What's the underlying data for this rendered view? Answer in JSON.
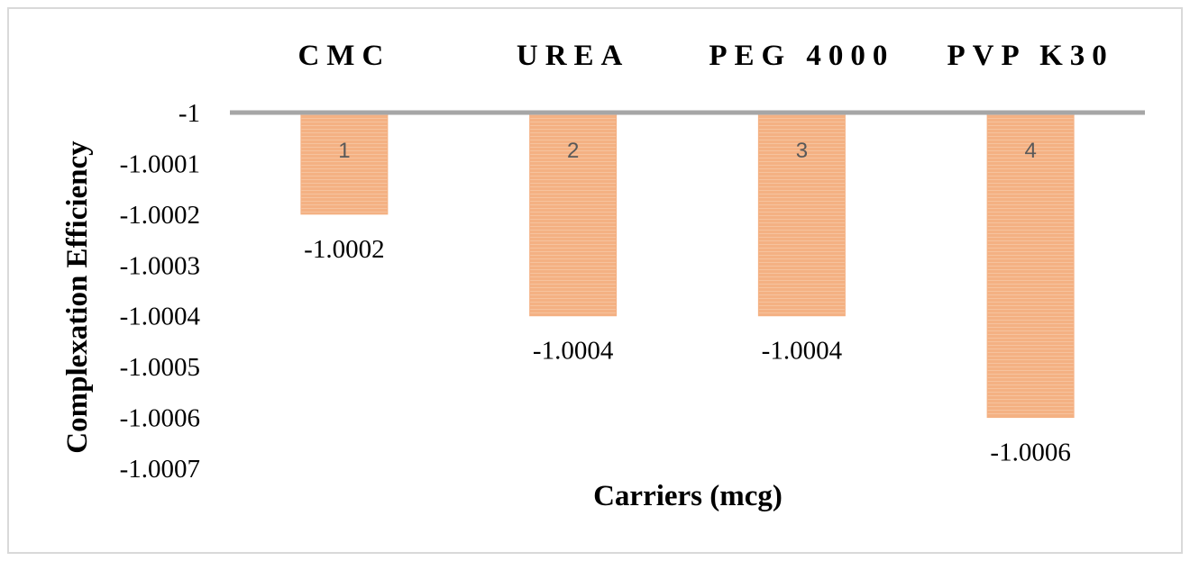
{
  "chart_data": {
    "type": "bar",
    "categories": [
      "CMC",
      "UREA",
      "PEG 4000",
      "PVP K30"
    ],
    "values": [
      -1.0002,
      -1.0004,
      -1.0004,
      -1.0006
    ],
    "bar_numbers": [
      "1",
      "2",
      "3",
      "4"
    ],
    "data_labels": [
      "-1.0002",
      "-1.0004",
      "-1.0004",
      "-1.0006"
    ],
    "xlabel": "Carriers (mcg)",
    "ylabel": "Complexation Efficiency",
    "ylim": [
      -1.0007,
      -1
    ],
    "yticks": [
      -1,
      -1.0001,
      -1.0002,
      -1.0003,
      -1.0004,
      -1.0005,
      -1.0006,
      -1.0007
    ],
    "ytick_labels": [
      "-1",
      "-1.0001",
      "-1.0002",
      "-1.0003",
      "-1.0004",
      "-1.0005",
      "-1.0006",
      "-1.0007"
    ],
    "x_axis_position": "top",
    "grid": false,
    "legend": "none",
    "bar_color": "#f4b183",
    "axis_color": "#a6a6a6"
  }
}
